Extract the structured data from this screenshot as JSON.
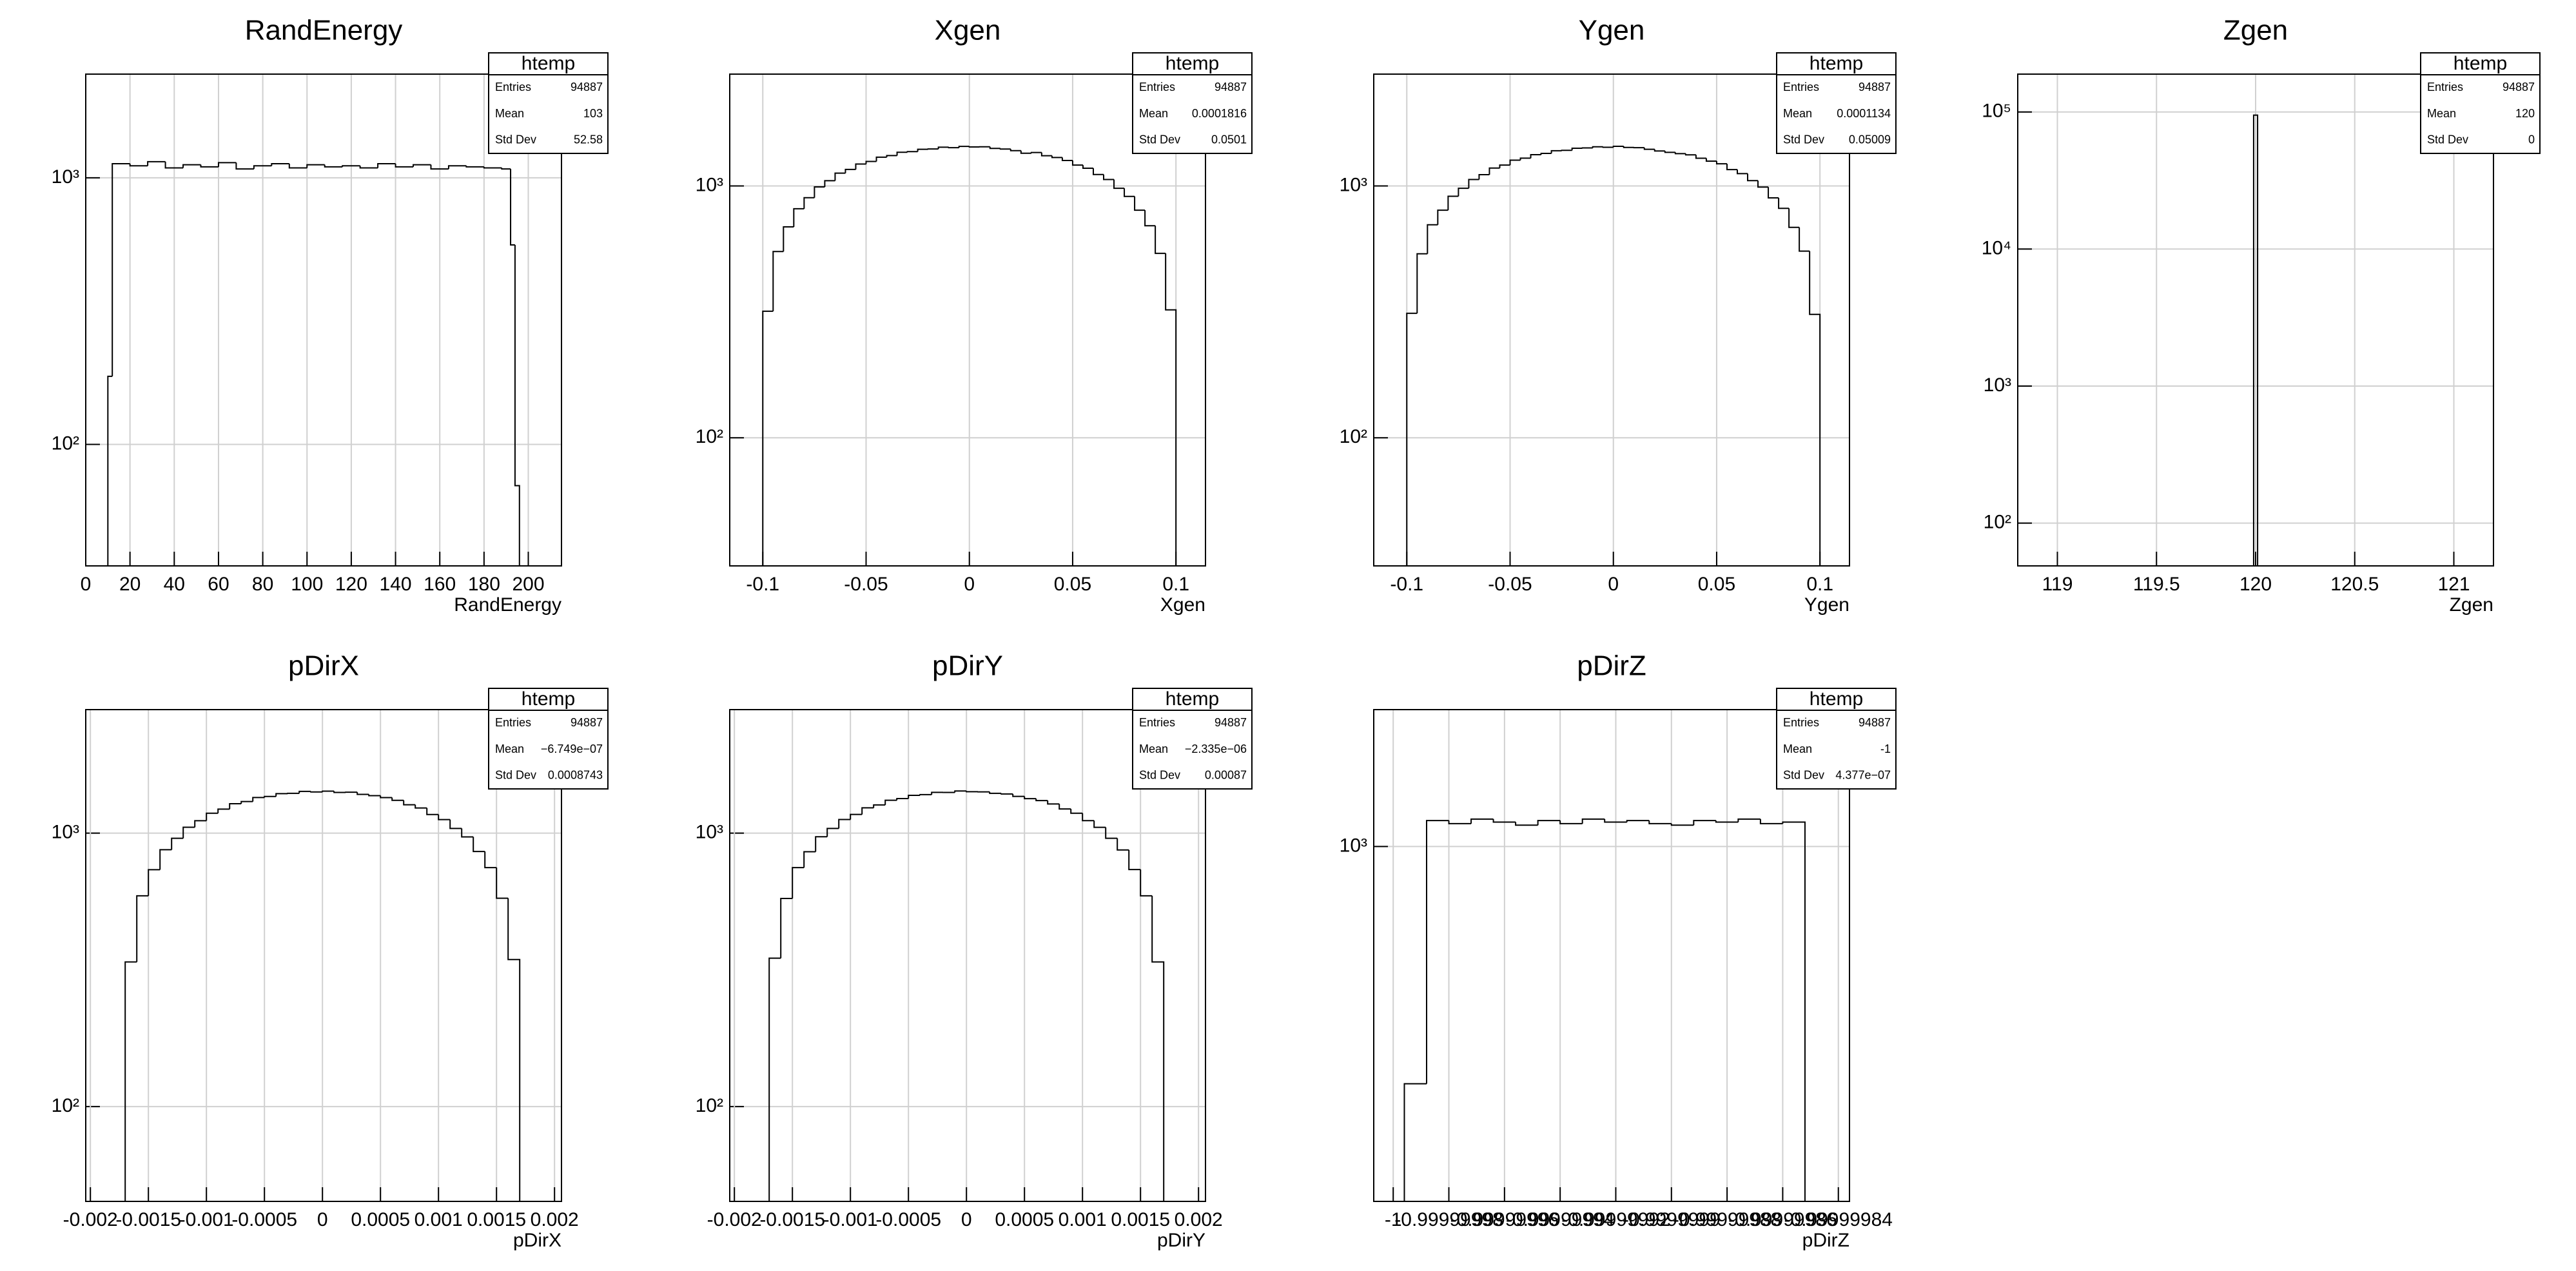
{
  "chart_data": [
    {
      "type": "histogram",
      "title": "RandEnergy",
      "xlabel": "RandEnergy",
      "color": "#000000",
      "log_y": true,
      "grid": true,
      "xlim": [
        0,
        215
      ],
      "xticks": [
        0,
        20,
        40,
        60,
        80,
        100,
        120,
        140,
        160,
        180,
        200
      ],
      "ylim": [
        35,
        2450
      ],
      "yticks": [
        {
          "value": 100,
          "label": "10²"
        },
        {
          "value": 1000,
          "label": "10³"
        }
      ],
      "bins": [
        10,
        12,
        20,
        28,
        36,
        44,
        52,
        60,
        68,
        76,
        84,
        92,
        100,
        108,
        116,
        124,
        132,
        140,
        148,
        156,
        164,
        172,
        180,
        188,
        192,
        194,
        196
      ],
      "counts": [
        180,
        1130,
        1110,
        1150,
        1090,
        1120,
        1100,
        1140,
        1080,
        1110,
        1130,
        1090,
        1120,
        1100,
        1110,
        1090,
        1130,
        1100,
        1120,
        1080,
        1110,
        1100,
        1090,
        1080,
        560,
        70
      ],
      "stats": {
        "title": "htemp",
        "rows": [
          {
            "label": "Entries",
            "value": 94887
          },
          {
            "label": "Mean",
            "value": 103
          },
          {
            "label": "Std Dev",
            "value": 52.58
          }
        ]
      }
    },
    {
      "type": "histogram",
      "title": "Xgen",
      "xlabel": "Xgen",
      "color": "#000000",
      "log_y": true,
      "grid": true,
      "xlim": [
        -0.116,
        0.1143
      ],
      "xticks": [
        -0.1,
        -0.05,
        0,
        0.05,
        0.1
      ],
      "ylim": [
        31,
        2780
      ],
      "yticks": [
        {
          "value": 100,
          "label": "10²"
        },
        {
          "value": 1000,
          "label": "10³"
        }
      ],
      "bins": [
        -0.1,
        -0.095,
        -0.09,
        -0.085,
        -0.08,
        -0.075,
        -0.07,
        -0.065,
        -0.06,
        -0.055,
        -0.05,
        -0.045,
        -0.04,
        -0.035,
        -0.03,
        -0.025,
        -0.02,
        -0.015,
        -0.01,
        -0.005,
        0,
        0.005,
        0.01,
        0.015,
        0.02,
        0.025,
        0.03,
        0.035,
        0.04,
        0.045,
        0.05,
        0.055,
        0.06,
        0.065,
        0.07,
        0.075,
        0.08,
        0.085,
        0.09,
        0.095,
        0.1
      ],
      "counts": [
        318,
        549,
        688,
        812,
        898,
        991,
        1049,
        1124,
        1163,
        1222,
        1251,
        1301,
        1320,
        1361,
        1369,
        1398,
        1402,
        1425,
        1419,
        1436,
        1428,
        1431,
        1410,
        1401,
        1381,
        1349,
        1358,
        1318,
        1297,
        1262,
        1210,
        1176,
        1110,
        1061,
        979,
        909,
        801,
        695,
        540,
        322
      ],
      "stats": {
        "title": "htemp",
        "rows": [
          {
            "label": "Entries",
            "value": 94887
          },
          {
            "label": "Mean",
            "value": 0.0001816
          },
          {
            "label": "Std Dev",
            "value": 0.0501
          }
        ]
      }
    },
    {
      "type": "histogram",
      "title": "Ygen",
      "xlabel": "Ygen",
      "color": "#000000",
      "log_y": true,
      "grid": true,
      "xlim": [
        -0.116,
        0.1143
      ],
      "xticks": [
        -0.1,
        -0.05,
        0,
        0.05,
        0.1
      ],
      "ylim": [
        31,
        2780
      ],
      "yticks": [
        {
          "value": 100,
          "label": "10²"
        },
        {
          "value": 1000,
          "label": "10³"
        }
      ],
      "bins": [
        -0.1,
        -0.095,
        -0.09,
        -0.085,
        -0.08,
        -0.075,
        -0.07,
        -0.065,
        -0.06,
        -0.055,
        -0.05,
        -0.045,
        -0.04,
        -0.035,
        -0.03,
        -0.025,
        -0.02,
        -0.015,
        -0.01,
        -0.005,
        0,
        0.005,
        0.01,
        0.015,
        0.02,
        0.025,
        0.03,
        0.035,
        0.04,
        0.045,
        0.05,
        0.055,
        0.06,
        0.065,
        0.07,
        0.075,
        0.08,
        0.085,
        0.09,
        0.095,
        0.1
      ],
      "counts": [
        312,
        538,
        701,
        801,
        910,
        979,
        1061,
        1109,
        1178,
        1210,
        1266,
        1289,
        1331,
        1347,
        1380,
        1385,
        1412,
        1416,
        1431,
        1424,
        1437,
        1422,
        1419,
        1398,
        1377,
        1360,
        1344,
        1329,
        1288,
        1255,
        1225,
        1161,
        1119,
        1050,
        990,
        897,
        815,
        685,
        551,
        309
      ],
      "stats": {
        "title": "htemp",
        "rows": [
          {
            "label": "Entries",
            "value": 94887
          },
          {
            "label": "Mean",
            "value": 0.0001134
          },
          {
            "label": "Std Dev",
            "value": 0.05009
          }
        ]
      }
    },
    {
      "type": "histogram",
      "title": "Zgen",
      "xlabel": "Zgen",
      "color": "#000000",
      "log_y": true,
      "grid": true,
      "xlim": [
        118.8,
        121.2
      ],
      "xticks": [
        119,
        119.5,
        120,
        120.5,
        121
      ],
      "ylim": [
        48.7,
        189000
      ],
      "yticks": [
        {
          "value": 100,
          "label": "10²"
        },
        {
          "value": 1000,
          "label": "10³"
        },
        {
          "value": 10000,
          "label": "10⁴"
        },
        {
          "value": 100000,
          "label": "10⁵"
        }
      ],
      "bins": [
        119.99,
        120.01
      ],
      "counts": [
        94887
      ],
      "stats": {
        "title": "htemp",
        "rows": [
          {
            "label": "Entries",
            "value": 94887
          },
          {
            "label": "Mean",
            "value": 120
          },
          {
            "label": "Std Dev",
            "value": 0
          }
        ]
      }
    },
    {
      "type": "histogram",
      "title": "pDirX",
      "xlabel": "pDirX",
      "color": "#000000",
      "log_y": true,
      "grid": true,
      "xlim": [
        -0.00204,
        0.00206
      ],
      "xticks": [
        -0.002,
        -0.0015,
        -0.001,
        -0.0005,
        0,
        0.0005,
        0.001,
        0.0015,
        0.002
      ],
      "ylim": [
        45,
        2830
      ],
      "yticks": [
        {
          "value": 100,
          "label": "10²"
        },
        {
          "value": 1000,
          "label": "10³"
        }
      ],
      "bins": [
        -0.0017,
        -0.0016,
        -0.0015,
        -0.0014,
        -0.0013,
        -0.0012,
        -0.0011,
        -0.001,
        -0.0009,
        -0.0008,
        -0.0007,
        -0.0006,
        -0.0005,
        -0.0004,
        -0.0003,
        -0.0002,
        -0.0001,
        0,
        0.0001,
        0.0002,
        0.0003,
        0.0004,
        0.0005,
        0.0006,
        0.0007,
        0.0008,
        0.0009,
        0.001,
        0.0011,
        0.0012,
        0.0013,
        0.0014,
        0.0015,
        0.0016,
        0.0017
      ],
      "counts": [
        338,
        590,
        735,
        870,
        958,
        1051,
        1110,
        1183,
        1224,
        1281,
        1305,
        1350,
        1362,
        1395,
        1398,
        1421,
        1415,
        1424,
        1409,
        1412,
        1386,
        1371,
        1349,
        1318,
        1270,
        1236,
        1170,
        1121,
        1040,
        969,
        857,
        748,
        578,
        345
      ],
      "stats": {
        "title": "htemp",
        "rows": [
          {
            "label": "Entries",
            "value": 94887
          },
          {
            "label": "Mean",
            "value": "−6.749e−07"
          },
          {
            "label": "Std Dev",
            "value": 0.0008743
          }
        ]
      }
    },
    {
      "type": "histogram",
      "title": "pDirY",
      "xlabel": "pDirY",
      "color": "#000000",
      "log_y": true,
      "grid": true,
      "xlim": [
        -0.00204,
        0.00206
      ],
      "xticks": [
        -0.002,
        -0.0015,
        -0.001,
        -0.0005,
        0,
        0.0005,
        0.001,
        0.0015,
        0.002
      ],
      "ylim": [
        45,
        2830
      ],
      "yticks": [
        {
          "value": 100,
          "label": "10²"
        },
        {
          "value": 1000,
          "label": "10³"
        }
      ],
      "bins": [
        -0.0017,
        -0.0016,
        -0.0015,
        -0.0014,
        -0.0013,
        -0.0012,
        -0.0011,
        -0.001,
        -0.0009,
        -0.0008,
        -0.0007,
        -0.0006,
        -0.0005,
        -0.0004,
        -0.0003,
        -0.0002,
        -0.0001,
        0,
        0.0001,
        0.0002,
        0.0003,
        0.0004,
        0.0005,
        0.0006,
        0.0007,
        0.0008,
        0.0009,
        0.001,
        0.0011,
        0.0012,
        0.0013,
        0.0014,
        0.0015,
        0.0016,
        0.0017
      ],
      "counts": [
        349,
        577,
        748,
        855,
        970,
        1040,
        1122,
        1171,
        1238,
        1268,
        1319,
        1338,
        1375,
        1383,
        1410,
        1409,
        1426,
        1418,
        1416,
        1398,
        1391,
        1363,
        1337,
        1316,
        1279,
        1226,
        1183,
        1111,
        1050,
        958,
        868,
        736,
        590,
        338
      ],
      "stats": {
        "title": "htemp",
        "rows": [
          {
            "label": "Entries",
            "value": 94887
          },
          {
            "label": "Mean",
            "value": "−2.335e−06"
          },
          {
            "label": "Std Dev",
            "value": 0.00087
          }
        ]
      }
    },
    {
      "type": "histogram",
      "title": "pDirZ",
      "xlabel": "pDirZ",
      "color": "#000000",
      "log_y": true,
      "grid": true,
      "xlim": [
        -1.000000007,
        -0.999999836
      ],
      "xticks": [
        -1,
        -0.99999998,
        -0.99999996,
        -0.99999994,
        -0.99999992,
        -0.9999999,
        -0.99999988,
        -0.99999986,
        -0.99999984
      ],
      "ylim": [
        131,
        2190
      ],
      "yticks": [
        {
          "value": 1000,
          "label": "10³"
        }
      ],
      "bins": [
        -0.999999996,
        -0.999999988,
        -0.99999998,
        -0.999999972,
        -0.999999964,
        -0.999999956,
        -0.999999948,
        -0.99999994,
        -0.999999932,
        -0.999999924,
        -0.999999916,
        -0.999999908,
        -0.9999999,
        -0.999999892,
        -0.999999884,
        -0.999999876,
        -0.999999868,
        -0.99999986,
        -0.999999852
      ],
      "counts": [
        257,
        1160,
        1140,
        1170,
        1150,
        1130,
        1160,
        1140,
        1170,
        1150,
        1160,
        1140,
        1130,
        1160,
        1150,
        1170,
        1140,
        1150
      ],
      "stats": {
        "title": "htemp",
        "rows": [
          {
            "label": "Entries",
            "value": 94887
          },
          {
            "label": "Mean",
            "value": -1
          },
          {
            "label": "Std Dev",
            "value": "4.377e−07"
          }
        ]
      }
    }
  ]
}
